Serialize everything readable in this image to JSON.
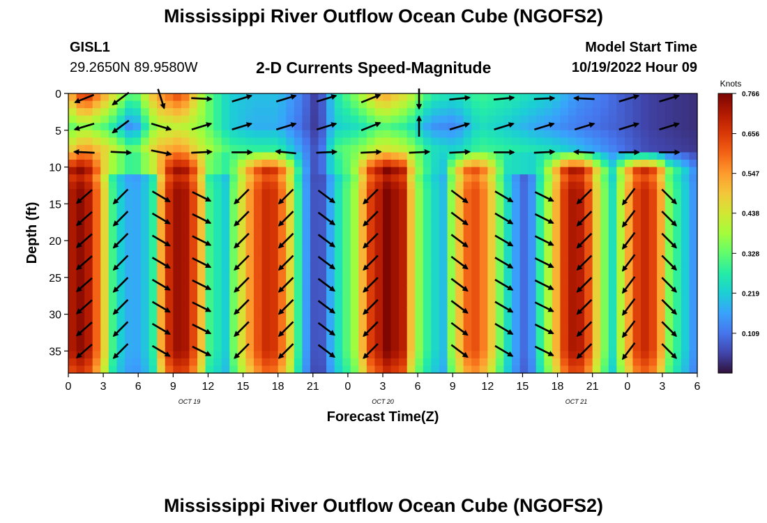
{
  "page": {
    "title": "Mississippi River Outflow Ocean Cube (NGOFS2)",
    "station": "GISL1",
    "coords": "29.2650N  89.9580W",
    "subtitle": "2-D Currents Speed-Magnitude",
    "model_start_label": "Model Start Time",
    "model_start_value": "10/19/2022 Hour 09",
    "bottom_title": "Mississippi River Outflow Ocean Cube (NGOFS2)"
  },
  "chart_data": {
    "type": "heatmap",
    "xlabel": "Forecast Time(Z)",
    "ylabel": "Depth (ft)",
    "x_tick_labels": [
      "0",
      "3",
      "6",
      "9",
      "12",
      "15",
      "18",
      "21",
      "0",
      "3",
      "6",
      "9",
      "12",
      "15",
      "18",
      "21",
      "0",
      "3",
      "6"
    ],
    "date_labels": [
      {
        "text": "OCT 19",
        "hour": 15
      },
      {
        "text": "OCT 20",
        "hour": 39
      },
      {
        "text": "OCT 21",
        "hour": 63
      }
    ],
    "xlim": [
      0,
      78
    ],
    "y_ticks": [
      0,
      5,
      10,
      15,
      20,
      25,
      30,
      35
    ],
    "ylim": [
      0,
      38
    ],
    "y_inverted": true,
    "colorbar": {
      "label": "Knots",
      "min": 0.0,
      "max": 0.766,
      "ticks": [
        "0.766",
        "0.656",
        "0.547",
        "0.438",
        "0.328",
        "0.219",
        "0.109"
      ],
      "tick_values": [
        0.766,
        0.656,
        0.547,
        0.438,
        0.328,
        0.219,
        0.109
      ],
      "colormap": [
        "#30123b",
        "#4145ab",
        "#4675ed",
        "#39a2fc",
        "#1bcfd4",
        "#24eca6",
        "#61fc6c",
        "#a4fc3b",
        "#d1e834",
        "#f3c63a",
        "#fe9b2d",
        "#f36315",
        "#d93806",
        "#b11901",
        "#7a0402"
      ]
    },
    "depths": [
      0.8,
      2.5,
      4.2,
      5.9,
      7.6,
      9.3,
      11,
      12.7,
      14.4,
      16.1,
      17.8,
      19.5,
      21.2,
      22.9,
      24.6,
      26.3,
      28,
      29.7,
      31.4,
      33.1,
      34.8,
      36.5,
      37.8
    ],
    "surface_layer_speed": [
      {
        "hour": 0,
        "top": 0.5,
        "mid": 0.32,
        "bot": 0.45
      },
      {
        "hour": 2,
        "top": 0.7,
        "mid": 0.38,
        "bot": 0.55
      },
      {
        "hour": 5,
        "top": 0.5,
        "mid": 0.3,
        "bot": 0.45
      },
      {
        "hour": 8,
        "top": 0.3,
        "mid": 0.12,
        "bot": 0.3
      },
      {
        "hour": 11,
        "top": 0.55,
        "mid": 0.4,
        "bot": 0.5
      },
      {
        "hour": 14,
        "top": 0.65,
        "mid": 0.42,
        "bot": 0.55
      },
      {
        "hour": 17,
        "top": 0.35,
        "mid": 0.35,
        "bot": 0.4
      },
      {
        "hour": 20,
        "top": 0.22,
        "mid": 0.22,
        "bot": 0.3
      },
      {
        "hour": 23,
        "top": 0.2,
        "mid": 0.18,
        "bot": 0.28
      },
      {
        "hour": 26,
        "top": 0.2,
        "mid": 0.18,
        "bot": 0.28
      },
      {
        "hour": 29,
        "top": 0.12,
        "mid": 0.1,
        "bot": 0.15
      },
      {
        "hour": 31,
        "top": 0.03,
        "mid": 0.03,
        "bot": 0.05
      },
      {
        "hour": 33,
        "top": 0.25,
        "mid": 0.22,
        "bot": 0.3
      },
      {
        "hour": 36,
        "top": 0.38,
        "mid": 0.25,
        "bot": 0.35
      },
      {
        "hour": 39,
        "top": 0.55,
        "mid": 0.32,
        "bot": 0.45
      },
      {
        "hour": 42,
        "top": 0.45,
        "mid": 0.28,
        "bot": 0.4
      },
      {
        "hour": 45,
        "top": 0.28,
        "mid": 0.15,
        "bot": 0.25
      },
      {
        "hour": 48,
        "top": 0.25,
        "mid": 0.13,
        "bot": 0.22
      },
      {
        "hour": 51,
        "top": 0.3,
        "mid": 0.25,
        "bot": 0.3
      },
      {
        "hour": 54,
        "top": 0.28,
        "mid": 0.22,
        "bot": 0.28
      },
      {
        "hour": 57,
        "top": 0.25,
        "mid": 0.18,
        "bot": 0.26
      },
      {
        "hour": 60,
        "top": 0.22,
        "mid": 0.15,
        "bot": 0.24
      },
      {
        "hour": 63,
        "top": 0.15,
        "mid": 0.12,
        "bot": 0.2
      },
      {
        "hour": 66,
        "top": 0.12,
        "mid": 0.1,
        "bot": 0.15
      },
      {
        "hour": 69,
        "top": 0.08,
        "mid": 0.08,
        "bot": 0.1
      },
      {
        "hour": 72,
        "top": 0.05,
        "mid": 0.05,
        "bot": 0.06
      },
      {
        "hour": 78,
        "top": 0.03,
        "mid": 0.03,
        "bot": 0.04
      }
    ],
    "deep_layer_speed": [
      {
        "hour": 0,
        "speed": 0.7
      },
      {
        "hour": 2,
        "speed": 0.76
      },
      {
        "hour": 4,
        "speed": 0.55
      },
      {
        "hour": 5.5,
        "speed": 0.3
      },
      {
        "hour": 7,
        "speed": 0.18
      },
      {
        "hour": 9,
        "speed": 0.17
      },
      {
        "hour": 10.5,
        "speed": 0.28
      },
      {
        "hour": 12,
        "speed": 0.65
      },
      {
        "hour": 14,
        "speed": 0.76
      },
      {
        "hour": 16,
        "speed": 0.6
      },
      {
        "hour": 17.5,
        "speed": 0.3
      },
      {
        "hour": 19.5,
        "speed": 0.22
      },
      {
        "hour": 21,
        "speed": 0.4
      },
      {
        "hour": 23,
        "speed": 0.6
      },
      {
        "hour": 25,
        "speed": 0.7
      },
      {
        "hour": 27,
        "speed": 0.55
      },
      {
        "hour": 29,
        "speed": 0.2
      },
      {
        "hour": 31,
        "speed": 0.03
      },
      {
        "hour": 33,
        "speed": 0.22
      },
      {
        "hour": 35.5,
        "speed": 0.38
      },
      {
        "hour": 37.5,
        "speed": 0.65
      },
      {
        "hour": 39.5,
        "speed": 0.76
      },
      {
        "hour": 41.5,
        "speed": 0.7
      },
      {
        "hour": 43,
        "speed": 0.4
      },
      {
        "hour": 45,
        "speed": 0.25
      },
      {
        "hour": 46.5,
        "speed": 0.2
      },
      {
        "hour": 48,
        "speed": 0.45
      },
      {
        "hour": 50,
        "speed": 0.65
      },
      {
        "hour": 52,
        "speed": 0.55
      },
      {
        "hour": 54,
        "speed": 0.28
      },
      {
        "hour": 56,
        "speed": 0.12
      },
      {
        "hour": 57,
        "speed": 0.08
      }
    ],
    "arrow_columns": [
      {
        "hour": 2,
        "top": [
          -1,
          -0.4
        ],
        "mid": [
          -1,
          -0.3
        ],
        "bot": [
          -1,
          0.05
        ],
        "deep": [
          -0.75,
          -0.66
        ]
      },
      {
        "hour": 6.5,
        "top": [
          -0.8,
          -0.6
        ],
        "mid": [
          -0.8,
          -0.6
        ],
        "bot": [
          1,
          -0.05
        ],
        "deep": [
          -0.7,
          -0.7
        ]
      },
      {
        "hour": 11.5,
        "top": [
          0.3,
          -0.95
        ],
        "mid": [
          1,
          -0.3
        ],
        "bot": [
          1,
          -0.2
        ],
        "deep": [
          0.85,
          -0.5
        ]
      },
      {
        "hour": 16.5,
        "top": [
          1,
          -0.05
        ],
        "mid": [
          1,
          0.3
        ],
        "bot": [
          1,
          0.05
        ],
        "deep": [
          0.9,
          -0.45
        ]
      },
      {
        "hour": 21.5,
        "top": [
          1,
          0.3
        ],
        "mid": [
          1,
          0.3
        ],
        "bot": [
          1,
          0
        ],
        "deep": [
          -0.7,
          -0.7
        ]
      },
      {
        "hour": 27,
        "top": [
          1,
          0.3
        ],
        "mid": [
          1,
          0.3
        ],
        "bot": [
          -1,
          0.1
        ],
        "deep": [
          -0.7,
          -0.7
        ]
      },
      {
        "hour": 32,
        "top": [
          1,
          0.3
        ],
        "mid": [
          1,
          0.3
        ],
        "bot": [
          1,
          0.05
        ],
        "deep": [
          0.8,
          -0.6
        ]
      },
      {
        "hour": 37.5,
        "top": [
          1,
          0.4
        ],
        "mid": [
          1,
          0.4
        ],
        "bot": [
          1,
          0.05
        ],
        "deep": [
          -0.7,
          -0.7
        ]
      },
      {
        "hour": 43.5,
        "top": [
          0,
          -1
        ],
        "mid": [
          0,
          1
        ],
        "bot": [
          1,
          0.05
        ],
        "deep": [
          0,
          0
        ]
      },
      {
        "hour": 48.5,
        "top": [
          1,
          0.1
        ],
        "mid": [
          1,
          0.3
        ],
        "bot": [
          1,
          0.05
        ],
        "deep": [
          0.8,
          -0.6
        ]
      },
      {
        "hour": 54,
        "top": [
          1,
          0.1
        ],
        "mid": [
          1,
          0.3
        ],
        "bot": [
          1,
          0
        ],
        "deep": [
          0.85,
          -0.5
        ]
      },
      {
        "hour": 59,
        "top": [
          1,
          0.05
        ],
        "mid": [
          1,
          0.3
        ],
        "bot": [
          1,
          0.05
        ],
        "deep": [
          0.9,
          -0.45
        ]
      },
      {
        "hour": 64,
        "top": [
          -1,
          0.05
        ],
        "mid": [
          1,
          0.3
        ],
        "bot": [
          -1,
          0.05
        ],
        "deep": [
          -0.7,
          -0.7
        ]
      },
      {
        "hour": 69.5,
        "top": [
          1,
          0.3
        ],
        "mid": [
          1,
          0.3
        ],
        "bot": [
          1,
          0
        ],
        "deep": [
          -0.6,
          -0.8
        ]
      },
      {
        "hour": 74.5,
        "top": [
          1,
          0.3
        ],
        "mid": [
          1,
          0.3
        ],
        "bot": [
          1,
          0
        ],
        "deep": [
          0.7,
          -0.7
        ]
      }
    ]
  }
}
